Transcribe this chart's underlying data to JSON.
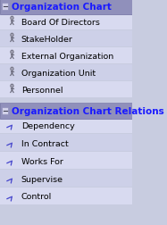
{
  "fig_width": 1.87,
  "fig_height": 2.53,
  "dpi": 100,
  "bg_color": "#c8cce0",
  "header_bg": "#8080b0",
  "header_text_color": "#1a1aff",
  "header_font_size": 7.5,
  "item_font_size": 6.8,
  "item_text_color": "#000000",
  "section1_title": "Organization Chart",
  "section2_title": "Organization Chart Relations",
  "section1_items": [
    "Board Of Directors",
    "StakeHolder",
    "External Organization",
    "Organization Unit",
    "Personnel"
  ],
  "section2_items": [
    "Dependency",
    "In Contract",
    "Works For",
    "Supervise",
    "Control"
  ]
}
